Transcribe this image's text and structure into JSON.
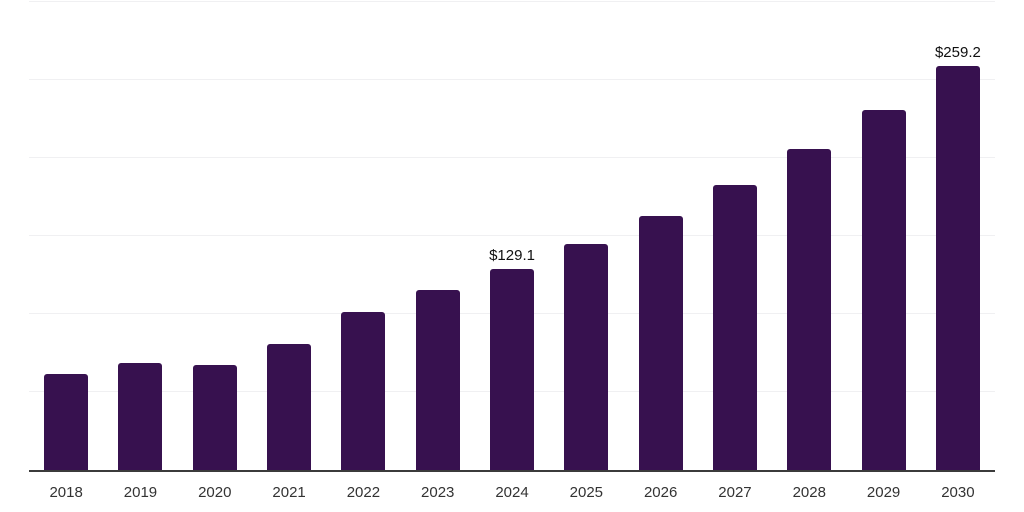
{
  "page": {
    "background": "#ffffff"
  },
  "chart_data": {
    "type": "bar",
    "title": "",
    "xlabel": "",
    "ylabel": "",
    "categories": [
      "2018",
      "2019",
      "2020",
      "2021",
      "2022",
      "2023",
      "2024",
      "2025",
      "2026",
      "2027",
      "2028",
      "2029",
      "2030"
    ],
    "values": [
      61.5,
      68.6,
      67.5,
      80.6,
      101.0,
      115.2,
      129.1,
      145.0,
      162.9,
      183.0,
      205.6,
      230.9,
      259.2
    ],
    "data_labels": [
      "",
      "",
      "",
      "",
      "",
      "",
      "$129.1",
      "",
      "",
      "",
      "",
      "",
      "$259.2"
    ],
    "ylim": [
      0,
      300
    ],
    "gridline_step": 50,
    "grid": true,
    "legend": "none",
    "y_axis_labels_visible": false,
    "bar_color": "#37114F",
    "axis_color": "#3b3b3b",
    "gridline_color": "#f0f0f2",
    "tick_label_color": "#333333",
    "data_label_color": "#101010"
  }
}
